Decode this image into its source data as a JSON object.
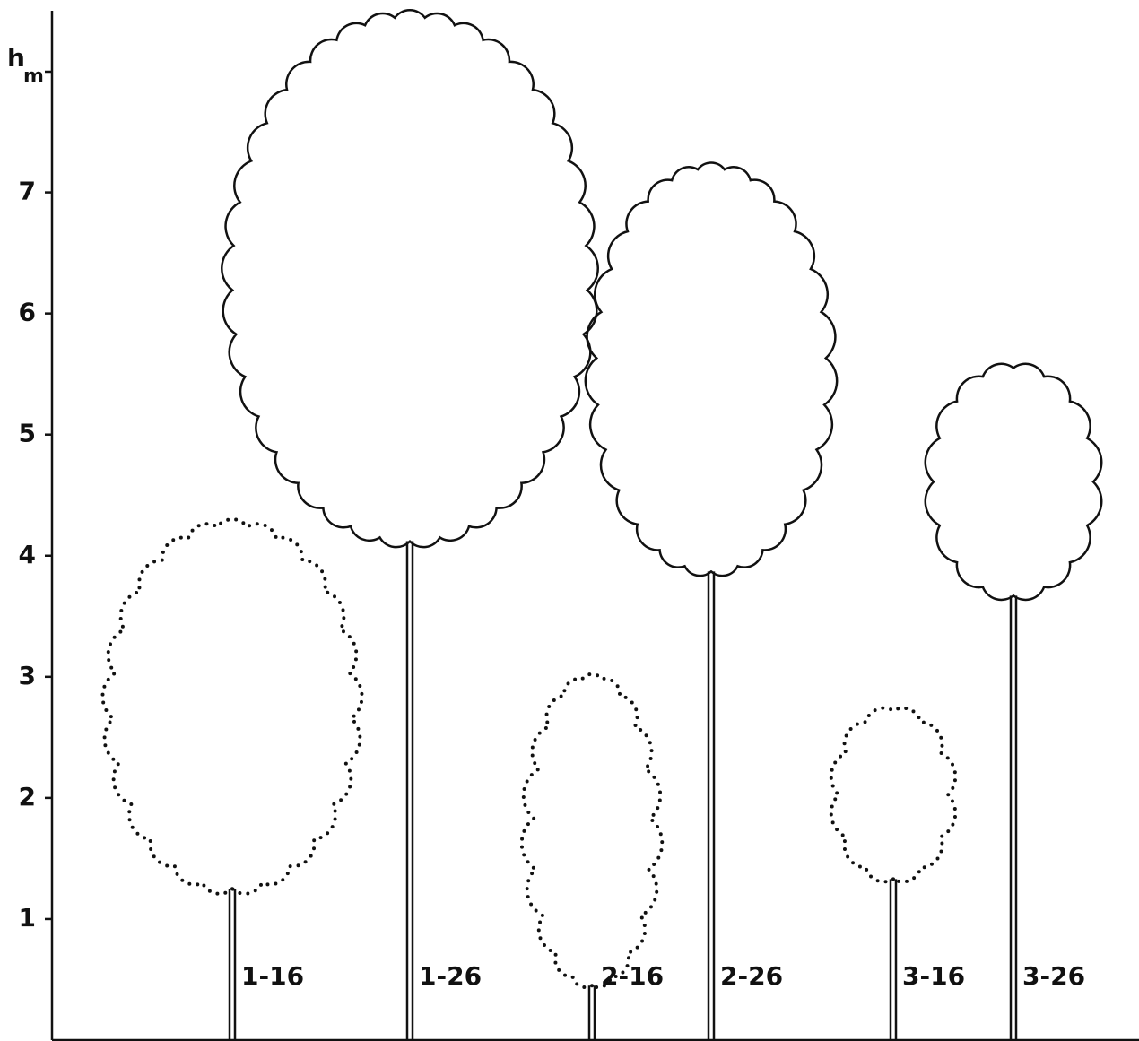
{
  "chart_data": {
    "type": "tree",
    "ylabel": "h",
    "ylabel_sub": "m",
    "ylim": [
      0,
      8.5
    ],
    "yticks": [
      1,
      2,
      3,
      4,
      5,
      6,
      7
    ],
    "series": [
      {
        "name": "1-16",
        "crown_base": 1.25,
        "crown_top": 4.25,
        "line_style": "dotted"
      },
      {
        "name": "1-26",
        "crown_base": 4.12,
        "crown_top": 8.45,
        "line_style": "solid"
      },
      {
        "name": "2-16",
        "crown_base": 0.45,
        "crown_top": 3.0,
        "line_style": "dotted"
      },
      {
        "name": "2-26",
        "crown_base": 3.87,
        "crown_top": 7.2,
        "line_style": "solid"
      },
      {
        "name": "3-16",
        "crown_base": 1.33,
        "crown_top": 2.72,
        "line_style": "dotted"
      },
      {
        "name": "3-26",
        "crown_base": 3.67,
        "crown_top": 5.55,
        "line_style": "solid"
      }
    ]
  }
}
